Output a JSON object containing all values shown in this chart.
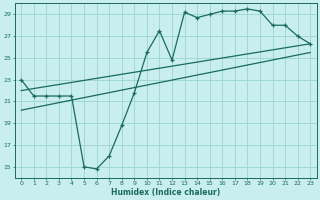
{
  "xlabel": "Humidex (Indice chaleur)",
  "ylabel": "",
  "bg_color": "#c8eef0",
  "grid_color": "#a0d8d0",
  "line_color": "#1a6b5a",
  "xlim": [
    -0.5,
    23.5
  ],
  "ylim": [
    14,
    30
  ],
  "yticks": [
    15,
    17,
    19,
    21,
    23,
    25,
    27,
    29
  ],
  "xticks": [
    0,
    1,
    2,
    3,
    4,
    5,
    6,
    7,
    8,
    9,
    10,
    11,
    12,
    13,
    14,
    15,
    16,
    17,
    18,
    19,
    20,
    21,
    22,
    23
  ],
  "curve1_x": [
    0,
    1,
    2,
    3,
    4,
    5,
    6,
    7,
    8,
    9,
    10,
    11,
    12,
    13,
    14,
    15,
    16,
    17,
    18,
    19,
    20,
    21,
    22,
    23
  ],
  "curve1_y": [
    23,
    21.5,
    21.5,
    21.5,
    21.5,
    15.0,
    14.8,
    16.0,
    18.8,
    21.8,
    25.5,
    27.5,
    24.8,
    29.2,
    28.7,
    29.0,
    29.3,
    29.3,
    29.5,
    29.3,
    28.0,
    28.0,
    27.0,
    26.3
  ],
  "line2_x": [
    0,
    23
  ],
  "line2_y": [
    22.0,
    26.3
  ],
  "line3_x": [
    0,
    23
  ],
  "line3_y": [
    20.2,
    25.5
  ]
}
